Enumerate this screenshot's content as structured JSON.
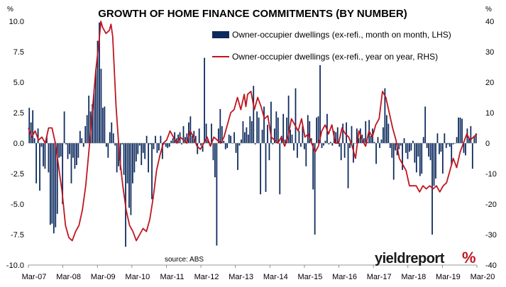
{
  "chart_data": {
    "type": "bar+line",
    "title": "GROWTH OF HOME FINANCE COMMITMENTS (BY NUMBER)",
    "left_axis": {
      "unit": "%",
      "ylim": [
        -10,
        10
      ],
      "ticks": [
        "10.0",
        "7.5",
        "5.0",
        "2.5",
        "0.0",
        "-2.5",
        "-5.0",
        "-7.5",
        "-10.0"
      ]
    },
    "right_axis": {
      "unit": "%",
      "ylim": [
        -40,
        40
      ],
      "ticks": [
        "40",
        "30",
        "20",
        "10",
        "0",
        "-10",
        "-20",
        "-30",
        "-40"
      ]
    },
    "x_tick_labels": [
      "Mar-07",
      "Mar-08",
      "Mar-09",
      "Mar-10",
      "Mar-11",
      "Mar-12",
      "Mar-13",
      "Mar-14",
      "Mar-15",
      "Mar-16",
      "Mar-17",
      "Mar-18",
      "Mar-19",
      "Mar-20"
    ],
    "x_start": "Mar-07",
    "series": [
      {
        "name": "Owner-occupier dwellings (ex-refi., month on month, LHS)",
        "type": "bar",
        "axis": "left",
        "color": "#0d2a5e",
        "values": [
          2.9,
          1.7,
          2.7,
          0.4,
          -3.3,
          1.2,
          -3.9,
          -0.3,
          -1.9,
          -2.1,
          0.6,
          -2.4,
          -6.7,
          -6.6,
          -7.4,
          -6.9,
          -5.8,
          -1.2,
          -1.1,
          -5.0,
          2.6,
          -0.1,
          -1.3,
          -0.9,
          -3.3,
          -1.2,
          -2.1,
          -1.8,
          -1.2,
          1.0,
          0.4,
          -0.3,
          1.4,
          2.3,
          3.9,
          2.6,
          3.2,
          4.4,
          6.0,
          8.4,
          9.9,
          6.1,
          2.9,
          3.0,
          -0.3,
          -1.2,
          0.9,
          1.7,
          0.8,
          -0.2,
          -2.4,
          -1.9,
          -2.2,
          -0.1,
          -2.6,
          -8.5,
          -3.3,
          -5.3,
          -5.9,
          -3.3,
          -2.4,
          -1.5,
          -0.9,
          -0.2,
          -1.8,
          -0.8,
          -1.3,
          0.6,
          -2.4,
          -0.1,
          -4.6,
          -0.5,
          0.6,
          -0.8,
          -0.6,
          0.6,
          -1.3,
          -0.1,
          -0.3,
          -0.4,
          -0.3,
          0.2,
          0.4,
          0.9,
          0.4,
          0.7,
          0.9,
          -0.1,
          1.4,
          0.5,
          0.8,
          1.7,
          2.2,
          0.6,
          1.0,
          0.6,
          -0.9,
          1.2,
          -0.2,
          -0.7,
          7.0,
          1.6,
          0.3,
          -0.2,
          1.6,
          -1.4,
          -2.8,
          -8.4,
          1.2,
          2.8,
          1.4,
          0.2,
          -0.5,
          -0.4,
          0.7,
          0.6,
          0.0,
          0.9,
          -0.8,
          -2.2,
          -0.2,
          0.3,
          1.8,
          0.9,
          1.3,
          0.7,
          2.2,
          1.8,
          4.7,
          -0.1,
          2.6,
          2.1,
          -4.2,
          1.1,
          3.0,
          -4.0,
          1.5,
          -1.4,
          3.4,
          -0.1,
          1.2,
          2.6,
          2.1,
          -4.2,
          0.6,
          2.4,
          0.3,
          2.1,
          3.9,
          1.1,
          0.7,
          -0.6,
          4.5,
          -1.2,
          1.0,
          -0.3,
          1.4,
          -0.5,
          -1.9,
          2.3,
          1.8,
          0.4,
          -3.8,
          -7.5,
          2.1,
          2.2,
          6.4,
          -0.4,
          -0.2,
          0.2,
          2.4,
          -0.1,
          0.1,
          -0.2,
          1.0,
          0.9,
          1.3,
          -0.3,
          -1.4,
          1.6,
          -1.2,
          1.7,
          -3.7,
          -0.4,
          1.4,
          -1.6,
          0.0,
          1.2,
          0.4,
          1.2,
          0.7,
          0.4,
          1.8,
          0.1,
          1.9,
          0.6,
          1.2,
          0.1,
          -1.7,
          0.5,
          -0.4,
          0.3,
          1.3,
          4.5,
          2.3,
          1.6,
          -0.4,
          -1.2,
          -3.0,
          -0.6,
          -1.0,
          -0.5,
          -0.2,
          -2.2,
          0.4,
          -0.8,
          -1.3,
          -0.7,
          -0.6,
          0.2,
          -1.6,
          -2.4,
          -1.1,
          -2.7,
          -2.5,
          0.5,
          3.0,
          -0.4,
          -1.1,
          -1.4,
          -7.5,
          -3.5,
          -2.9,
          0.8,
          -0.9,
          -0.7,
          -2.5,
          0.8,
          -0.4,
          -0.1,
          -0.3,
          -1.8,
          -0.1,
          0.0,
          0.5,
          2.1,
          2.1,
          2.0,
          -0.8,
          -1.0,
          1.2,
          0.4,
          1.4,
          -2.1,
          0.6,
          0.8
        ]
      },
      {
        "name": "Owner-occupier dwellings (ex-refi., year on year, RHS)",
        "type": "line",
        "axis": "right",
        "color": "#c0161f",
        "points": [
          [
            0,
            5
          ],
          [
            2,
            2
          ],
          [
            4,
            4
          ],
          [
            6,
            1
          ],
          [
            8,
            2
          ],
          [
            10,
            0
          ],
          [
            12,
            5
          ],
          [
            14,
            5
          ],
          [
            16,
            0
          ],
          [
            18,
            -8
          ],
          [
            20,
            -16
          ],
          [
            22,
            -27
          ],
          [
            24,
            -31
          ],
          [
            26,
            -32
          ],
          [
            28,
            -29
          ],
          [
            30,
            -27
          ],
          [
            32,
            -22
          ],
          [
            34,
            -14
          ],
          [
            36,
            -2
          ],
          [
            38,
            11
          ],
          [
            40,
            24
          ],
          [
            42,
            34
          ],
          [
            43,
            40
          ],
          [
            44,
            38
          ],
          [
            46,
            36
          ],
          [
            48,
            37
          ],
          [
            49,
            39
          ],
          [
            50,
            35
          ],
          [
            52,
            12
          ],
          [
            54,
            -4
          ],
          [
            56,
            -14
          ],
          [
            58,
            -22
          ],
          [
            60,
            -27
          ],
          [
            62,
            -29
          ],
          [
            64,
            -32
          ],
          [
            66,
            -30
          ],
          [
            68,
            -28
          ],
          [
            70,
            -29
          ],
          [
            72,
            -25
          ],
          [
            74,
            -18
          ],
          [
            76,
            -9
          ],
          [
            78,
            -4
          ],
          [
            80,
            0
          ],
          [
            82,
            1
          ],
          [
            84,
            4
          ],
          [
            86,
            2
          ],
          [
            88,
            0
          ],
          [
            90,
            2
          ],
          [
            92,
            1
          ],
          [
            94,
            0
          ],
          [
            96,
            4
          ],
          [
            98,
            2
          ],
          [
            100,
            -1
          ],
          [
            102,
            -2
          ],
          [
            104,
            0
          ],
          [
            106,
            2
          ],
          [
            108,
            -1
          ],
          [
            110,
            2
          ],
          [
            112,
            1
          ],
          [
            114,
            0
          ],
          [
            116,
            2
          ],
          [
            118,
            6
          ],
          [
            120,
            10
          ],
          [
            122,
            11
          ],
          [
            124,
            15
          ],
          [
            126,
            11
          ],
          [
            128,
            16
          ],
          [
            129,
            12
          ],
          [
            130,
            16
          ],
          [
            132,
            17
          ],
          [
            134,
            11
          ],
          [
            136,
            15
          ],
          [
            138,
            12
          ],
          [
            140,
            8
          ],
          [
            142,
            9
          ],
          [
            144,
            2
          ],
          [
            146,
            1
          ],
          [
            148,
            0
          ],
          [
            150,
            2
          ],
          [
            152,
            -1
          ],
          [
            154,
            2
          ],
          [
            156,
            8
          ],
          [
            158,
            6
          ],
          [
            160,
            4
          ],
          [
            162,
            8
          ],
          [
            164,
            2
          ],
          [
            166,
            3
          ],
          [
            168,
            0
          ],
          [
            170,
            -3
          ],
          [
            172,
            -1
          ],
          [
            174,
            4
          ],
          [
            176,
            6
          ],
          [
            178,
            3
          ],
          [
            180,
            6
          ],
          [
            182,
            0
          ],
          [
            184,
            0
          ],
          [
            186,
            5
          ],
          [
            188,
            3
          ],
          [
            190,
            2
          ],
          [
            192,
            -1
          ],
          [
            194,
            -5
          ],
          [
            196,
            4
          ],
          [
            198,
            1
          ],
          [
            200,
            -1
          ],
          [
            202,
            4
          ],
          [
            204,
            2
          ],
          [
            206,
            6
          ],
          [
            208,
            8
          ],
          [
            210,
            17
          ],
          [
            212,
            15
          ],
          [
            214,
            10
          ],
          [
            216,
            5
          ],
          [
            218,
            1
          ],
          [
            220,
            -5
          ],
          [
            222,
            -7
          ],
          [
            224,
            -9
          ],
          [
            226,
            -14
          ],
          [
            228,
            -14
          ],
          [
            230,
            -14
          ],
          [
            232,
            -16
          ],
          [
            234,
            -14
          ],
          [
            236,
            -15
          ],
          [
            238,
            -14
          ],
          [
            240,
            -15
          ],
          [
            242,
            -14
          ],
          [
            244,
            -16
          ],
          [
            246,
            -14
          ],
          [
            248,
            -13
          ],
          [
            250,
            -9
          ],
          [
            252,
            -5
          ],
          [
            254,
            -8
          ],
          [
            256,
            -3
          ],
          [
            258,
            0
          ],
          [
            260,
            3
          ],
          [
            262,
            1
          ],
          [
            264,
            2
          ],
          [
            266,
            3
          ]
        ]
      }
    ],
    "legend_position": "top-right",
    "source_note": "source: ABS",
    "grid": false
  },
  "brand": {
    "name": "yieldreport",
    "symbol": "%"
  }
}
